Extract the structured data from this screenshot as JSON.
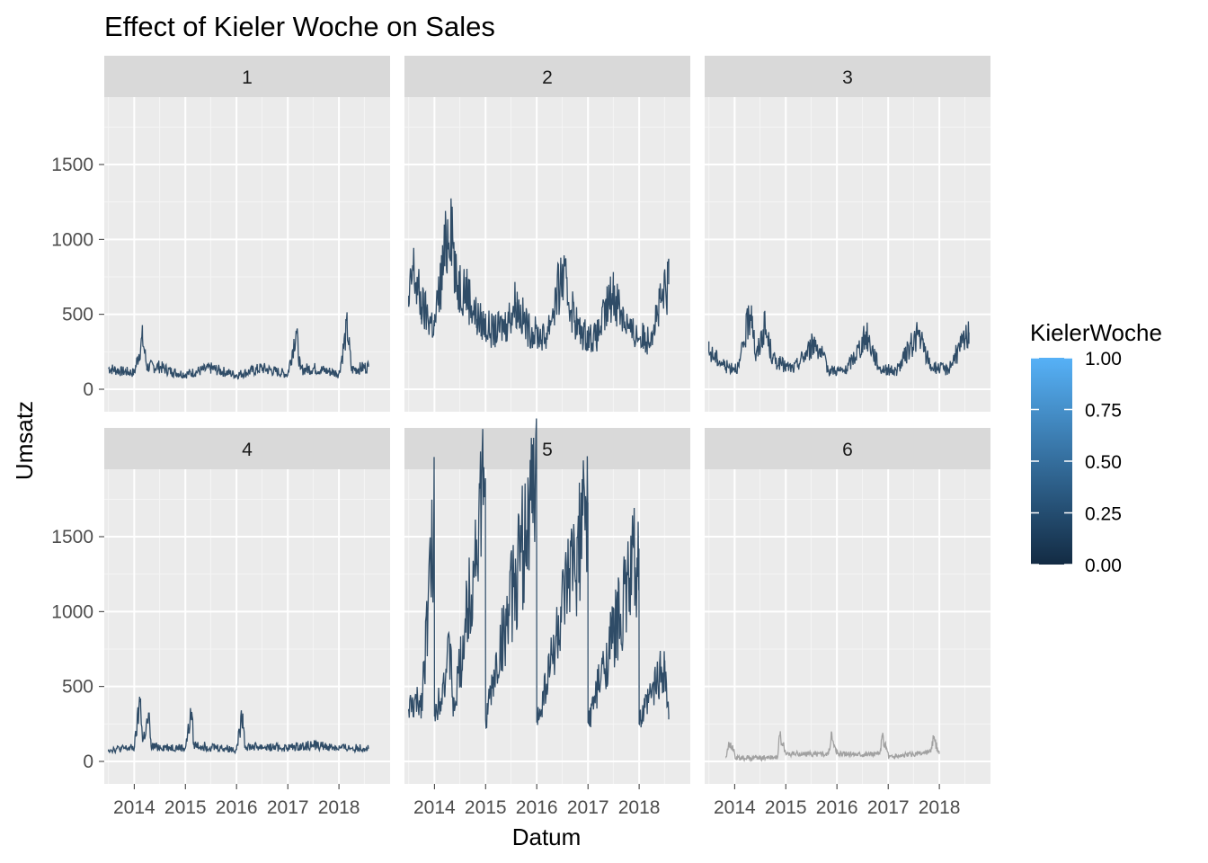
{
  "chart_data": {
    "type": "line",
    "title": "Effect of Kieler Woche on Sales",
    "xlabel": "Datum",
    "ylabel": "Umsatz",
    "x_range": [
      "2013-06-01",
      "2019-01-01"
    ],
    "x_ticks": [
      "2014",
      "2015",
      "2016",
      "2017",
      "2018"
    ],
    "y_range": [
      -150,
      1950
    ],
    "y_ticks": [
      0,
      500,
      1000,
      1500
    ],
    "grid": true,
    "legend": {
      "title": "KielerWoche",
      "position": "right",
      "type": "colorbar",
      "ticks": [
        "0.00",
        "0.25",
        "0.50",
        "0.75",
        "1.00"
      ],
      "color_low": "#132B43",
      "color_high": "#56B1F7",
      "na_color": "#999999"
    },
    "facets": [
      {
        "label": "1",
        "range": [
          "2013-07-01",
          "2018-07-31"
        ],
        "points": [
          [
            "2013-07-01",
            140
          ],
          [
            "2013-10-01",
            120
          ],
          [
            "2014-01-01",
            110
          ],
          [
            "2014-03-01",
            340
          ],
          [
            "2014-04-01",
            150
          ],
          [
            "2014-07-01",
            150
          ],
          [
            "2014-10-01",
            115
          ],
          [
            "2015-01-01",
            100
          ],
          [
            "2015-07-01",
            140
          ],
          [
            "2016-01-01",
            95
          ],
          [
            "2016-07-01",
            140
          ],
          [
            "2017-01-01",
            100
          ],
          [
            "2017-03-01",
            390
          ],
          [
            "2017-04-01",
            130
          ],
          [
            "2017-07-01",
            140
          ],
          [
            "2018-01-01",
            105
          ],
          [
            "2018-03-01",
            415
          ],
          [
            "2018-04-01",
            130
          ],
          [
            "2018-07-31",
            150
          ]
        ]
      },
      {
        "label": "2",
        "range": [
          "2013-07-01",
          "2018-07-31"
        ],
        "points": [
          [
            "2013-07-01",
            550
          ],
          [
            "2013-08-01",
            800
          ],
          [
            "2013-10-01",
            550
          ],
          [
            "2014-01-01",
            420
          ],
          [
            "2014-05-01",
            1200
          ],
          [
            "2014-06-01",
            700
          ],
          [
            "2014-08-01",
            700
          ],
          [
            "2014-11-01",
            470
          ],
          [
            "2015-03-01",
            380
          ],
          [
            "2015-06-01",
            440
          ],
          [
            "2015-08-01",
            580
          ],
          [
            "2015-11-01",
            400
          ],
          [
            "2016-03-01",
            340
          ],
          [
            "2016-07-01",
            750
          ],
          [
            "2016-11-01",
            380
          ],
          [
            "2017-03-01",
            340
          ],
          [
            "2017-07-01",
            650
          ],
          [
            "2017-11-01",
            380
          ],
          [
            "2018-03-01",
            330
          ],
          [
            "2018-07-31",
            700
          ]
        ]
      },
      {
        "label": "3",
        "range": [
          "2013-07-01",
          "2018-07-31"
        ],
        "points": [
          [
            "2013-07-01",
            250
          ],
          [
            "2013-09-01",
            200
          ],
          [
            "2013-11-01",
            150
          ],
          [
            "2014-02-01",
            150
          ],
          [
            "2014-05-01",
            560
          ],
          [
            "2014-06-01",
            200
          ],
          [
            "2014-08-01",
            420
          ],
          [
            "2014-10-01",
            200
          ],
          [
            "2015-01-01",
            150
          ],
          [
            "2015-03-01",
            140
          ],
          [
            "2015-08-01",
            320
          ],
          [
            "2015-11-01",
            130
          ],
          [
            "2016-03-01",
            120
          ],
          [
            "2016-08-01",
            360
          ],
          [
            "2016-11-01",
            140
          ],
          [
            "2017-03-01",
            120
          ],
          [
            "2017-08-01",
            370
          ],
          [
            "2017-11-01",
            150
          ],
          [
            "2018-03-01",
            130
          ],
          [
            "2018-07-31",
            380
          ]
        ]
      },
      {
        "label": "4",
        "range": [
          "2013-07-01",
          "2018-07-31"
        ],
        "points": [
          [
            "2013-07-01",
            80
          ],
          [
            "2014-01-01",
            90
          ],
          [
            "2014-02-15",
            420
          ],
          [
            "2014-03-01",
            130
          ],
          [
            "2014-04-15",
            290
          ],
          [
            "2014-05-01",
            100
          ],
          [
            "2015-01-01",
            90
          ],
          [
            "2015-02-15",
            330
          ],
          [
            "2015-03-01",
            110
          ],
          [
            "2016-01-01",
            80
          ],
          [
            "2016-02-15",
            320
          ],
          [
            "2016-03-01",
            100
          ],
          [
            "2017-01-01",
            90
          ],
          [
            "2017-07-01",
            110
          ],
          [
            "2018-01-01",
            90
          ],
          [
            "2018-07-31",
            90
          ]
        ]
      },
      {
        "label": "5",
        "range": [
          "2013-07-01",
          "2018-07-31"
        ],
        "points": [
          [
            "2013-07-01",
            350
          ],
          [
            "2013-10-01",
            400
          ],
          [
            "2013-12-31",
            1620
          ],
          [
            "2014-01-01",
            300
          ],
          [
            "2014-05-01",
            740
          ],
          [
            "2014-05-15",
            300
          ],
          [
            "2014-12-31",
            1890
          ],
          [
            "2015-01-01",
            280
          ],
          [
            "2015-12-31",
            1870
          ],
          [
            "2016-01-01",
            260
          ],
          [
            "2016-12-31",
            1700
          ],
          [
            "2017-01-01",
            260
          ],
          [
            "2017-12-31",
            1420
          ],
          [
            "2018-01-01",
            250
          ],
          [
            "2018-07-01",
            660
          ],
          [
            "2018-07-31",
            280
          ]
        ]
      },
      {
        "label": "6",
        "range": [
          "2013-11-01",
          "2017-12-31"
        ],
        "points": [
          [
            "2013-11-01",
            30
          ],
          [
            "2013-11-20",
            130
          ],
          [
            "2013-12-31",
            60
          ],
          [
            "2014-01-05",
            20
          ],
          [
            "2014-11-01",
            30
          ],
          [
            "2014-11-20",
            170
          ],
          [
            "2014-12-31",
            60
          ],
          [
            "2015-01-05",
            50
          ],
          [
            "2015-11-01",
            50
          ],
          [
            "2015-11-20",
            160
          ],
          [
            "2015-12-31",
            60
          ],
          [
            "2016-01-05",
            50
          ],
          [
            "2016-11-01",
            50
          ],
          [
            "2016-11-20",
            160
          ],
          [
            "2016-12-31",
            60
          ],
          [
            "2017-01-05",
            30
          ],
          [
            "2017-11-01",
            60
          ],
          [
            "2017-11-20",
            150
          ],
          [
            "2017-12-31",
            50
          ]
        ]
      }
    ]
  }
}
